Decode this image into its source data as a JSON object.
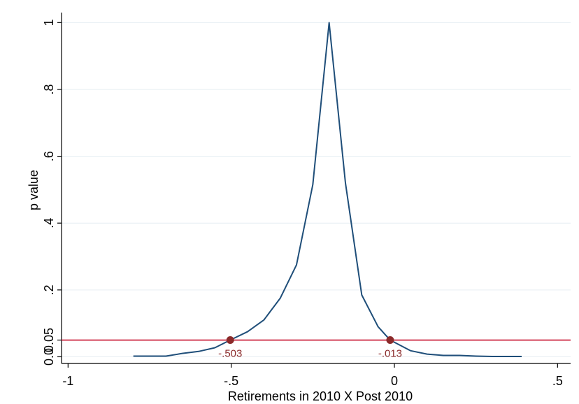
{
  "chart_data": {
    "type": "line",
    "xlabel": "Retirements in 2010 X Post 2010",
    "ylabel": "p value",
    "xlim": [
      -1.02,
      0.54
    ],
    "ylim": [
      -0.02,
      1.03
    ],
    "x_ticks": [
      {
        "value": -1,
        "label": "-1"
      },
      {
        "value": -0.5,
        "label": "-.5"
      },
      {
        "value": 0,
        "label": "0"
      },
      {
        "value": 0.5,
        "label": ".5"
      }
    ],
    "y_ticks": [
      {
        "value": 0,
        "label": "0.0"
      },
      {
        "value": 0.05,
        "label": "0.05"
      },
      {
        "value": 0.2,
        "label": ".2"
      },
      {
        "value": 0.4,
        "label": ".4"
      },
      {
        "value": 0.6,
        "label": ".6"
      },
      {
        "value": 0.8,
        "label": ".8"
      },
      {
        "value": 1,
        "label": "1"
      }
    ],
    "grid": true,
    "series": [
      {
        "color": "#1f4e79",
        "points": [
          [
            -0.8,
            0.002
          ],
          [
            -0.75,
            0.002
          ],
          [
            -0.7,
            0.002
          ],
          [
            -0.65,
            0.01
          ],
          [
            -0.6,
            0.016
          ],
          [
            -0.55,
            0.027
          ],
          [
            -0.503,
            0.05
          ],
          [
            -0.45,
            0.075
          ],
          [
            -0.4,
            0.11
          ],
          [
            -0.35,
            0.175
          ],
          [
            -0.3,
            0.275
          ],
          [
            -0.25,
            0.515
          ],
          [
            -0.2,
            1.0
          ],
          [
            -0.15,
            0.52
          ],
          [
            -0.1,
            0.185
          ],
          [
            -0.05,
            0.09
          ],
          [
            -0.013,
            0.05
          ],
          [
            0.05,
            0.018
          ],
          [
            0.1,
            0.008
          ],
          [
            0.15,
            0.004
          ],
          [
            0.2,
            0.004
          ],
          [
            0.25,
            0.002
          ],
          [
            0.3,
            0.001
          ],
          [
            0.35,
            0.001
          ],
          [
            0.39,
            0.001
          ]
        ]
      }
    ],
    "reference_line": {
      "y": 0.05,
      "color": "#c8102e"
    },
    "marked_points": [
      {
        "x": -0.503,
        "y": 0.05,
        "label": "-.503"
      },
      {
        "x": -0.013,
        "y": 0.05,
        "label": "-.013"
      }
    ],
    "marker_color": "#8b2a2a"
  }
}
